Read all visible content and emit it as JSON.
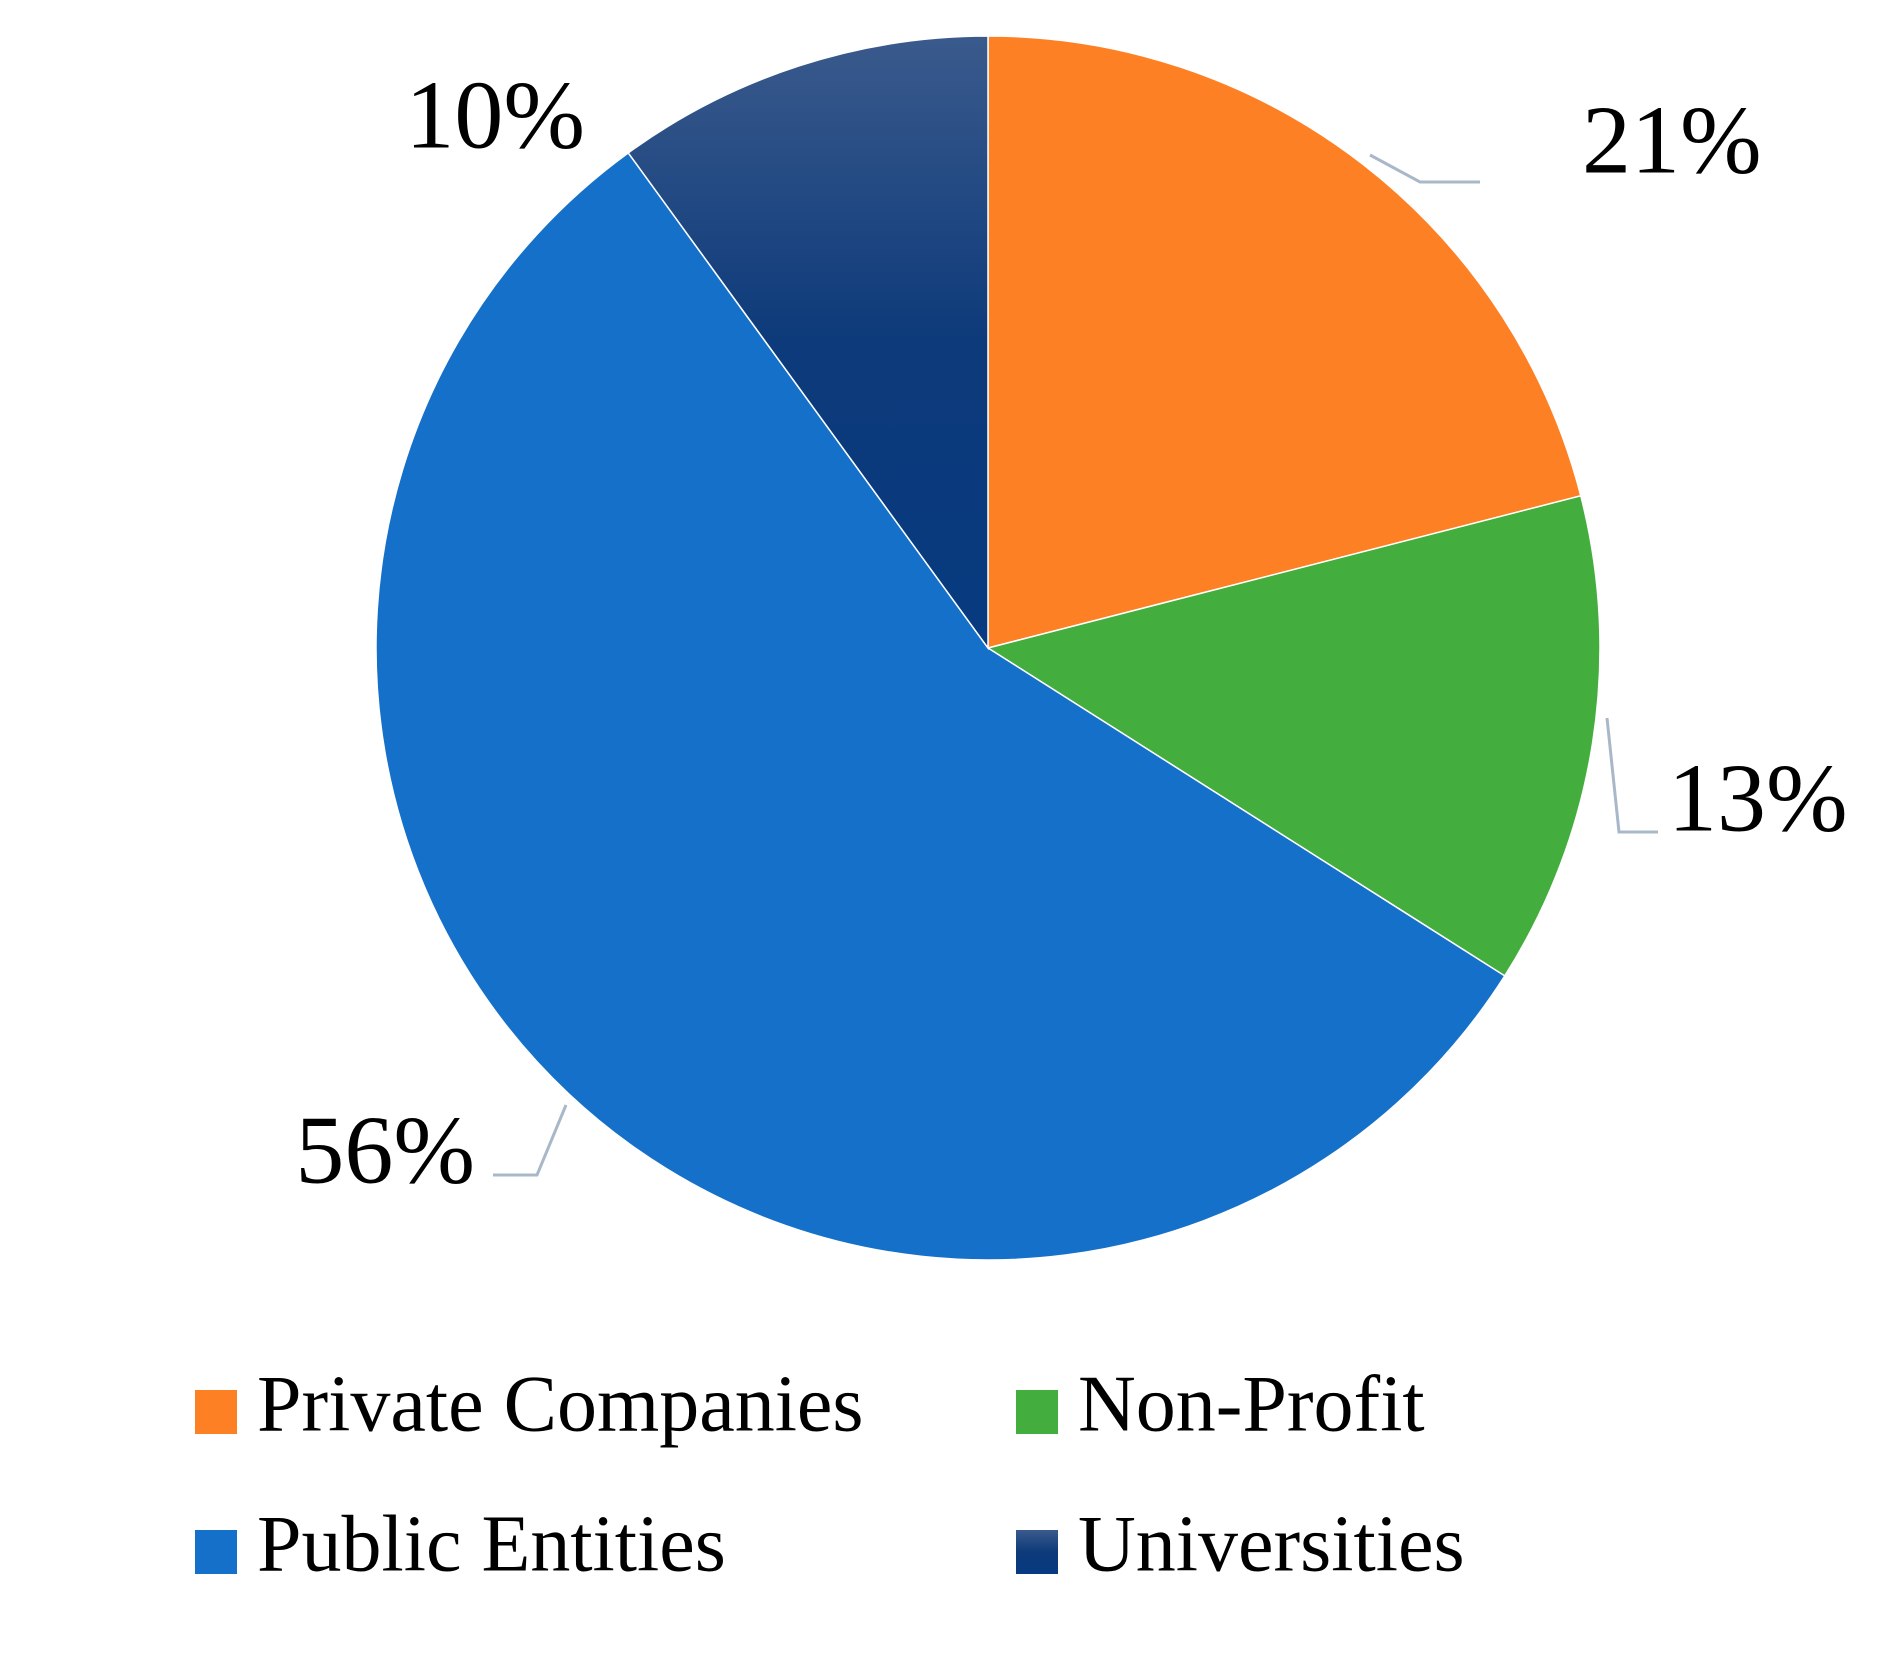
{
  "chart_data": {
    "type": "pie",
    "categories": [
      "Private Companies",
      "Non-Profit",
      "Public Entities",
      "Universities"
    ],
    "values": [
      21,
      13,
      56,
      10
    ],
    "value_labels": [
      "21%",
      "13%",
      "56%",
      "10%"
    ],
    "colors": [
      "#fd8024",
      "#43ad3d",
      "#1570c9",
      "#1f4f8a"
    ]
  }
}
